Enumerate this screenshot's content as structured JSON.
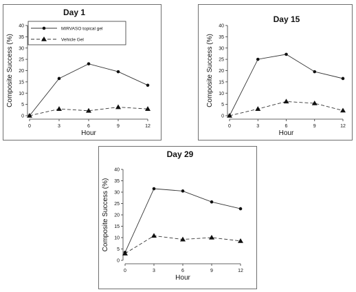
{
  "chart_data": [
    {
      "type": "line",
      "title": "Day 1",
      "xlabel": "Hour",
      "ylabel": "Composite Success (%)",
      "x": [
        0,
        3,
        6,
        9,
        12
      ],
      "xlim": [
        0,
        12
      ],
      "ylim": [
        0,
        40
      ],
      "yticks": [
        0,
        5,
        10,
        15,
        20,
        25,
        30,
        35,
        40
      ],
      "xticks": [
        0,
        3,
        6,
        9,
        12
      ],
      "legend": {
        "position": "top-left",
        "entries": [
          "MIRVASO topical gel",
          "Vehicle  Gel"
        ]
      },
      "series": [
        {
          "name": "MIRVASO topical gel",
          "values": [
            0,
            16.5,
            23,
            19.5,
            13.5
          ],
          "marker": "circle",
          "line": "solid"
        },
        {
          "name": "Vehicle  Gel",
          "values": [
            0,
            3,
            2.2,
            3.8,
            3
          ],
          "marker": "triangle",
          "line": "dashed"
        }
      ]
    },
    {
      "type": "line",
      "title": "Day 15",
      "xlabel": "Hour",
      "ylabel": "Composite Success (%)",
      "x": [
        0,
        3,
        6,
        9,
        12
      ],
      "xlim": [
        0,
        12
      ],
      "ylim": [
        0,
        40
      ],
      "yticks": [
        0,
        5,
        10,
        15,
        20,
        25,
        30,
        35,
        40
      ],
      "xticks": [
        0,
        3,
        6,
        9,
        12
      ],
      "series": [
        {
          "values": [
            0,
            25,
            27.2,
            19.5,
            16.5
          ],
          "marker": "circle",
          "line": "solid"
        },
        {
          "values": [
            0,
            3,
            6.3,
            5.5,
            2.3
          ],
          "marker": "triangle",
          "line": "dashed"
        }
      ]
    },
    {
      "type": "line",
      "title": "Day 29",
      "xlabel": "Hour",
      "ylabel": "Composite Success (%)",
      "x": [
        0,
        3,
        6,
        9,
        12
      ],
      "xlim": [
        0,
        12
      ],
      "ylim": [
        0,
        40
      ],
      "yticks": [
        0,
        5,
        10,
        15,
        20,
        25,
        30,
        35,
        40
      ],
      "xticks": [
        0,
        3,
        6,
        9,
        12
      ],
      "series": [
        {
          "values": [
            3.5,
            31.5,
            30.5,
            25.7,
            22.7
          ],
          "marker": "circle",
          "line": "solid"
        },
        {
          "values": [
            3,
            10.8,
            9.2,
            10,
            8.5
          ],
          "marker": "triangle",
          "line": "dashed"
        }
      ]
    }
  ]
}
